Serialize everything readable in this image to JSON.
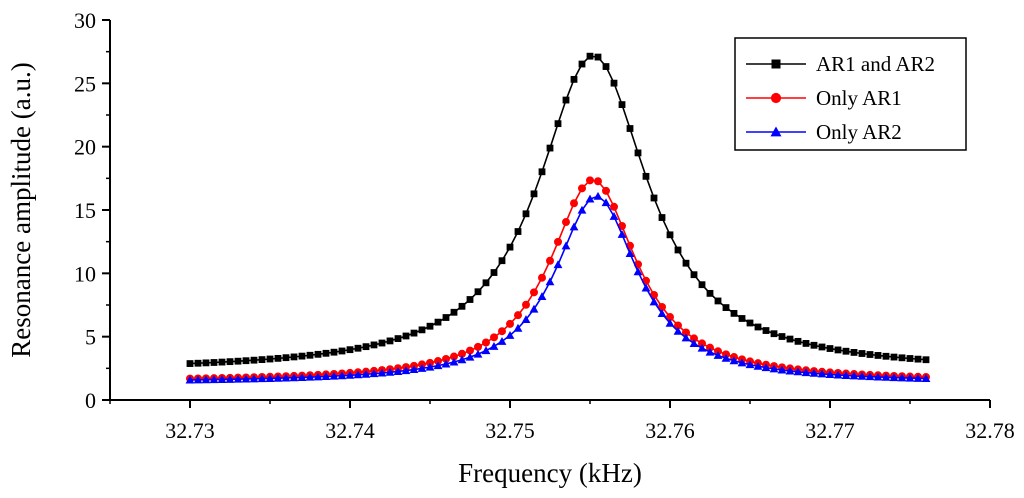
{
  "chart_data": {
    "type": "line",
    "title": "",
    "xlabel": "Frequency (kHz)",
    "ylabel": "Resonance amplitude (a.u.)",
    "xlim": [
      32.725,
      32.78
    ],
    "ylim": [
      0,
      30
    ],
    "xticks": [
      "32.73",
      "32.74",
      "32.75",
      "32.76",
      "32.77",
      "32.78"
    ],
    "xtick_values": [
      32.73,
      32.74,
      32.75,
      32.76,
      32.77,
      32.78
    ],
    "yticks": [
      "0",
      "5",
      "10",
      "15",
      "20",
      "25",
      "30"
    ],
    "ytick_values": [
      0,
      5,
      10,
      15,
      20,
      25,
      30
    ],
    "grid": false,
    "legend_position": "top-right",
    "x_start": 32.73,
    "x_end": 32.776,
    "n_points": 93,
    "series": [
      {
        "name": "AR1 and AR2",
        "color": "#000000",
        "marker": "square",
        "peak_frequency": 32.7552,
        "peak_amplitude": 27.2,
        "baseline": 2.2,
        "half_width": 0.0042
      },
      {
        "name": "Only AR1",
        "color": "#ff0000",
        "marker": "circle",
        "peak_frequency": 32.7552,
        "peak_amplitude": 17.4,
        "baseline": 1.42,
        "half_width": 0.0033
      },
      {
        "name": "Only AR2",
        "color": "#0000ff",
        "marker": "triangle",
        "peak_frequency": 32.7554,
        "peak_amplitude": 16.1,
        "baseline": 1.36,
        "half_width": 0.00315
      }
    ]
  }
}
